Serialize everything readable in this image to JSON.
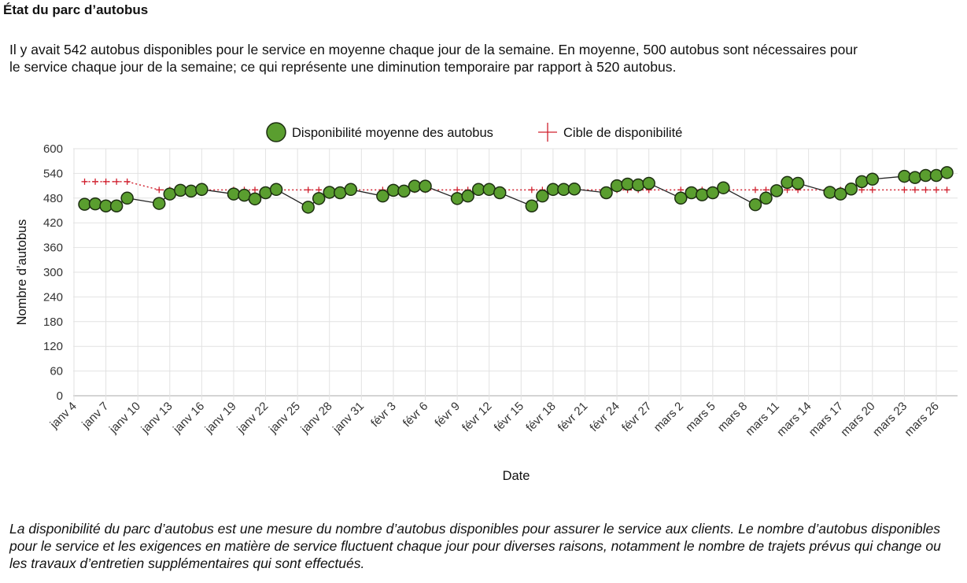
{
  "title": "État du parc d’autobus",
  "intro": "Il y avait 542 autobus disponibles pour le service en moyenne chaque jour de la semaine. En moyenne, 500 autobus sont nécessaires pour le service chaque jour de la semaine; ce qui représente une diminution temporaire par rapport à 520 autobus.",
  "note": "La disponibilité du parc d’autobus est une mesure du nombre d’autobus disponibles pour assurer le service aux clients. Le nombre d’autobus disponibles pour le service et les exigences en matière de service fluctuent chaque jour pour diverses raisons, notamment le nombre de trajets prévus qui change ou les travaux d’entretien supplémentaires qui sont effectués.",
  "colors": {
    "availability": "#5a9e2f",
    "target": "#d0202e",
    "line": "#222222"
  },
  "chart_data": {
    "type": "line",
    "xlabel": "Date",
    "ylabel": "Nombre d’autobus",
    "ylim": [
      0,
      600
    ],
    "yticks": [
      0,
      60,
      120,
      180,
      240,
      300,
      360,
      420,
      480,
      540,
      600
    ],
    "grid": true,
    "legend_position": "top-center",
    "x_unit": "days since janv 4",
    "x_ticks": [
      {
        "day": 0,
        "label": "janv 4"
      },
      {
        "day": 3,
        "label": "janv 7"
      },
      {
        "day": 6,
        "label": "janv 10"
      },
      {
        "day": 9,
        "label": "janv 13"
      },
      {
        "day": 12,
        "label": "janv 16"
      },
      {
        "day": 15,
        "label": "janv 19"
      },
      {
        "day": 18,
        "label": "janv 22"
      },
      {
        "day": 21,
        "label": "janv 25"
      },
      {
        "day": 24,
        "label": "janv 28"
      },
      {
        "day": 27,
        "label": "janv 31"
      },
      {
        "day": 30,
        "label": "févr 3"
      },
      {
        "day": 33,
        "label": "févr 6"
      },
      {
        "day": 36,
        "label": "févr 9"
      },
      {
        "day": 39,
        "label": "févr 12"
      },
      {
        "day": 42,
        "label": "févr 15"
      },
      {
        "day": 45,
        "label": "févr 18"
      },
      {
        "day": 48,
        "label": "févr 21"
      },
      {
        "day": 51,
        "label": "févr 24"
      },
      {
        "day": 54,
        "label": "févr 27"
      },
      {
        "day": 57,
        "label": "mars 2"
      },
      {
        "day": 60,
        "label": "mars 5"
      },
      {
        "day": 63,
        "label": "mars 8"
      },
      {
        "day": 66,
        "label": "mars 11"
      },
      {
        "day": 69,
        "label": "mars 14"
      },
      {
        "day": 72,
        "label": "mars 17"
      },
      {
        "day": 75,
        "label": "mars 20"
      },
      {
        "day": 78,
        "label": "mars 23"
      },
      {
        "day": 81,
        "label": "mars 26"
      }
    ],
    "x": [
      1,
      2,
      3,
      4,
      5,
      8,
      9,
      10,
      11,
      12,
      15,
      16,
      17,
      18,
      19,
      22,
      23,
      24,
      25,
      26,
      29,
      30,
      31,
      32,
      33,
      36,
      37,
      38,
      39,
      40,
      43,
      44,
      45,
      46,
      47,
      50,
      51,
      52,
      53,
      54,
      57,
      58,
      59,
      60,
      61,
      64,
      65,
      66,
      67,
      68,
      71,
      72,
      73,
      74,
      75,
      78,
      79,
      80,
      81,
      82
    ],
    "series": [
      {
        "name": "Disponibilité moyenne des autobus",
        "values": [
          465,
          466,
          461,
          461,
          480,
          467,
          490,
          499,
          497,
          501,
          490,
          487,
          478,
          493,
          501,
          458,
          479,
          494,
          493,
          501,
          485,
          499,
          497,
          509,
          509,
          479,
          485,
          501,
          501,
          493,
          461,
          485,
          501,
          501,
          502,
          493,
          510,
          514,
          512,
          516,
          480,
          493,
          488,
          493,
          505,
          464,
          480,
          498,
          518,
          516,
          494,
          490,
          502,
          520,
          526,
          533,
          530,
          535,
          535,
          542
        ]
      },
      {
        "name": "Cible de disponibilité",
        "values": [
          520,
          520,
          520,
          520,
          520,
          500,
          500,
          500,
          500,
          500,
          500,
          500,
          500,
          500,
          500,
          500,
          500,
          500,
          500,
          500,
          500,
          500,
          500,
          500,
          500,
          500,
          500,
          500,
          500,
          500,
          500,
          500,
          500,
          500,
          500,
          500,
          500,
          500,
          500,
          500,
          500,
          500,
          500,
          500,
          500,
          500,
          500,
          500,
          500,
          500,
          500,
          500,
          500,
          500,
          500,
          500,
          500,
          500,
          500,
          500
        ]
      }
    ]
  }
}
